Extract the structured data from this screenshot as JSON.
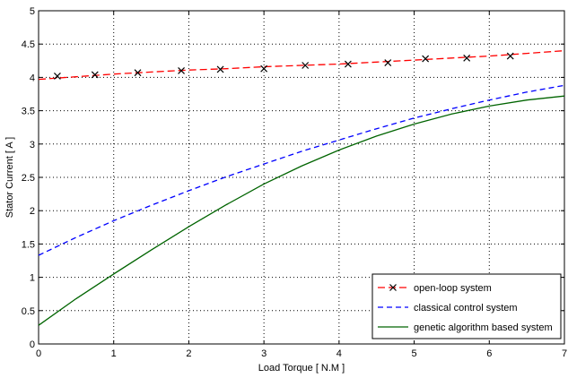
{
  "chart_data": {
    "type": "line",
    "xlabel": "Load Torque [ N.M ]",
    "ylabel": "Stator Current [ A ]",
    "xlim": [
      0,
      7
    ],
    "ylim": [
      0,
      5
    ],
    "xticks": [
      0,
      1,
      2,
      3,
      4,
      5,
      6,
      7
    ],
    "yticks": [
      0,
      0.5,
      1,
      1.5,
      2,
      2.5,
      3,
      3.5,
      4,
      4.5,
      5
    ],
    "grid": true,
    "legend_position": "bottom-right",
    "series": [
      {
        "name": "open-loop system",
        "color": "#ff0000",
        "line_style": "dashed",
        "marker": "x",
        "x": [
          0,
          0.5,
          1,
          1.5,
          2,
          2.5,
          3,
          3.5,
          4,
          4.5,
          5,
          5.5,
          6,
          6.5,
          7
        ],
        "y": [
          3.97,
          4.01,
          4.05,
          4.08,
          4.11,
          4.13,
          4.16,
          4.18,
          4.2,
          4.23,
          4.26,
          4.29,
          4.32,
          4.36,
          4.4
        ],
        "marker_x": [
          0.25,
          0.75,
          1.32,
          1.9,
          2.42,
          3.0,
          3.55,
          4.12,
          4.65,
          5.15,
          5.7,
          6.28
        ],
        "marker_y": [
          4.02,
          4.04,
          4.07,
          4.1,
          4.12,
          4.13,
          4.18,
          4.2,
          4.22,
          4.28,
          4.29,
          4.32
        ]
      },
      {
        "name": "classical control system",
        "color": "#0000ff",
        "line_style": "dashed",
        "marker": "none",
        "x": [
          0,
          0.5,
          1,
          1.5,
          2,
          2.5,
          3,
          3.5,
          4,
          4.5,
          5,
          5.5,
          6,
          6.5,
          7
        ],
        "y": [
          1.33,
          1.6,
          1.85,
          2.08,
          2.3,
          2.51,
          2.7,
          2.89,
          3.06,
          3.23,
          3.39,
          3.53,
          3.66,
          3.78,
          3.88
        ]
      },
      {
        "name": "genetic algorithm based system",
        "color": "#006400",
        "line_style": "solid",
        "marker": "none",
        "x": [
          0,
          0.5,
          1,
          1.5,
          2,
          2.5,
          3,
          3.5,
          4,
          4.5,
          5,
          5.5,
          6,
          6.5,
          7
        ],
        "y": [
          0.28,
          0.68,
          1.05,
          1.41,
          1.76,
          2.09,
          2.4,
          2.67,
          2.91,
          3.12,
          3.3,
          3.45,
          3.57,
          3.66,
          3.72
        ]
      }
    ]
  }
}
